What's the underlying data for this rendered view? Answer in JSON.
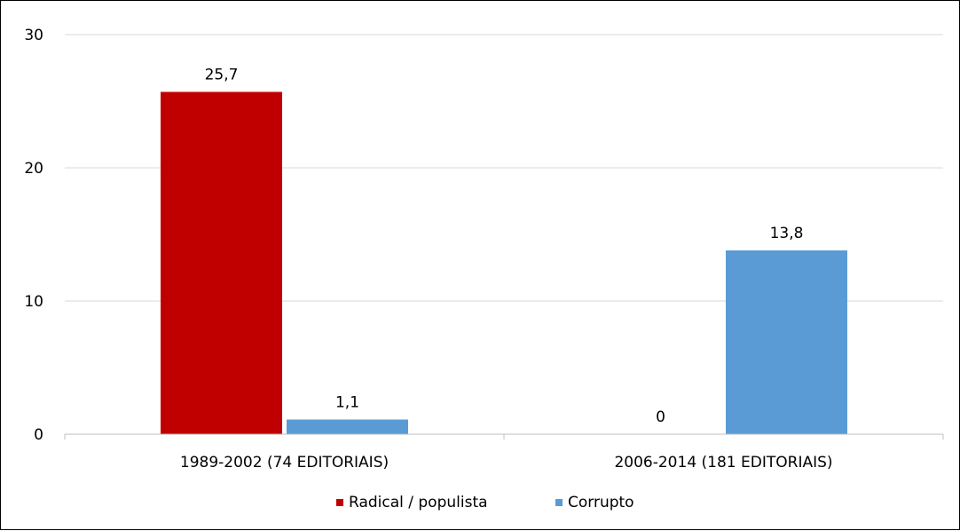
{
  "chart_data": {
    "type": "bar",
    "title": "",
    "xlabel": "",
    "ylabel": "",
    "categories": [
      "1989-2002 (74 EDITORIAIS)",
      "2006-2014 (181 EDITORIAIS)"
    ],
    "series": [
      {
        "name": "Radical / populista",
        "values": [
          25.7,
          0
        ],
        "labels": [
          "25,7",
          "0"
        ],
        "color": "#c00000"
      },
      {
        "name": "Corrupto",
        "values": [
          1.1,
          13.8
        ],
        "labels": [
          "1,1",
          "13,8"
        ],
        "color": "#5b9bd5"
      }
    ],
    "ylim": [
      0,
      30
    ],
    "yticks": [
      0,
      10,
      20,
      30
    ],
    "grid": true,
    "legend_position": "bottom"
  }
}
